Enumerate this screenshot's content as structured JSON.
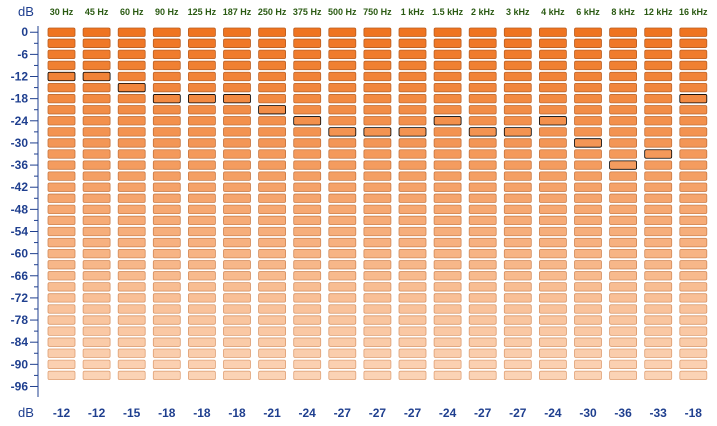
{
  "chart_data": {
    "type": "bar",
    "title": "",
    "xlabel": "",
    "ylabel": "dB",
    "unit_label_top": "dB",
    "unit_label_bottom": "dB",
    "ylim": [
      -100,
      0
    ],
    "yticks": [
      "0",
      "-6",
      "-12",
      "-18",
      "-24",
      "-30",
      "-36",
      "-42",
      "-48",
      "-54",
      "-60",
      "-66",
      "-72",
      "-78",
      "-84",
      "-90",
      "-96"
    ],
    "categories": [
      "30 Hz",
      "45 Hz",
      "60 Hz",
      "90 Hz",
      "125 Hz",
      "187 Hz",
      "250 Hz",
      "375 Hz",
      "500 Hz",
      "750 Hz",
      "1 kHz",
      "1.5 kHz",
      "2 kHz",
      "3 kHz",
      "4 kHz",
      "6 kHz",
      "8 kHz",
      "12 kHz",
      "16 kHz"
    ],
    "values": [
      -12,
      -12,
      -15,
      -18,
      -18,
      -18,
      -21,
      -24,
      -27,
      -27,
      -27,
      -24,
      -27,
      -27,
      -24,
      -30,
      -36,
      -33,
      -18
    ],
    "value_labels": [
      "-12",
      "-12",
      "-15",
      "-18",
      "-18",
      "-18",
      "-21",
      "-24",
      "-27",
      "-27",
      "-27",
      "-24",
      "-27",
      "-27",
      "-24",
      "-30",
      "-36",
      "-33",
      "-18"
    ],
    "segment_step_db": 3,
    "grid": false,
    "legend": "none"
  },
  "colors": {
    "bar_top": "#ef7420",
    "bar_bottom": "#fbd3b5",
    "bar_border": "#b85c1f",
    "peak_border": "#000000",
    "axis": "#1f3f8f",
    "band_label": "#2a5a12"
  }
}
